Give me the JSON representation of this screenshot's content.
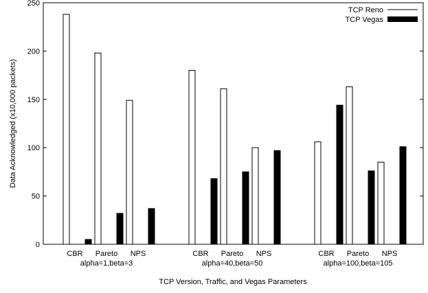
{
  "chart_data": {
    "type": "bar",
    "xlabel": "TCP Version, Traffic, and Vegas Parameters",
    "ylabel": "Data Acknowledged (x10,000 packets)",
    "ylim": [
      0,
      250
    ],
    "yticks": [
      0,
      50,
      100,
      150,
      200,
      250
    ],
    "grid": false,
    "legend_position": "top-right",
    "groups": [
      {
        "label": "alpha=1,beta=3",
        "categories": [
          "CBR",
          "Pareto",
          "NPS"
        ],
        "reno": [
          238,
          198,
          149
        ],
        "vegas": [
          5,
          32,
          37
        ]
      },
      {
        "label": "alpha=40,beta=50",
        "categories": [
          "CBR",
          "Pareto",
          "NPS"
        ],
        "reno": [
          180,
          161,
          100
        ],
        "vegas": [
          68,
          75,
          97
        ]
      },
      {
        "label": "alpha=100,beta=105",
        "categories": [
          "CBR",
          "Pareto",
          "NPS"
        ],
        "reno": [
          106,
          163,
          85
        ],
        "vegas": [
          144,
          76,
          101
        ]
      }
    ],
    "series": [
      {
        "name": "TCP Reno",
        "color": "#ffffff",
        "stroke": "#000000"
      },
      {
        "name": "TCP Vegas",
        "color": "#000000",
        "stroke": "#000000"
      }
    ]
  }
}
